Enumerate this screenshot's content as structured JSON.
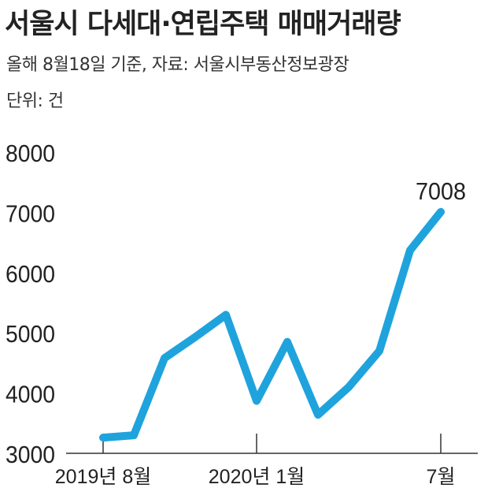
{
  "title": "서울시 다세대·연립주택 매매거래량",
  "subtitle": "올해 8월18일 기준, 자료: 서울시부동산정보광장",
  "unit_label": "단위: 건",
  "colors": {
    "line": "#1fa3dd",
    "text": "#222222",
    "axis": "#333333"
  },
  "chart_data": {
    "type": "line",
    "title": "서울시 다세대·연립주택 매매거래량",
    "ylabel": "단위: 건",
    "xlabel": "",
    "ylim": [
      3000,
      8000
    ],
    "yticks": [
      "8000",
      "7000",
      "6000",
      "5000",
      "4000",
      "3000"
    ],
    "x": [
      "2019-08",
      "2019-09",
      "2019-10",
      "2019-11",
      "2019-12",
      "2020-01",
      "2020-02",
      "2020-03",
      "2020-04",
      "2020-05",
      "2020-06",
      "2020-07"
    ],
    "x_tick_labels": [
      {
        "x": "2019-08",
        "label": "2019년 8월"
      },
      {
        "x": "2020-01",
        "label": "2020년 1월"
      },
      {
        "x": "2020-07",
        "label": "7월"
      }
    ],
    "series": [
      {
        "values": [
          3260,
          3300,
          4580,
          4930,
          5300,
          3870,
          4850,
          3640,
          4100,
          4700,
          6370,
          7008
        ],
        "point_x": [
          "2019-08",
          "2019-09",
          "2019-10",
          "2019-11",
          "2019-12",
          "2020-01",
          "2020-02",
          "2020-03",
          "2020-04",
          "2020-05",
          "2020-06",
          "2020-07"
        ]
      }
    ],
    "annotations": [
      {
        "x": "2020-07",
        "y": 7008,
        "text": "7008"
      }
    ],
    "grid": false,
    "legend": "none"
  }
}
